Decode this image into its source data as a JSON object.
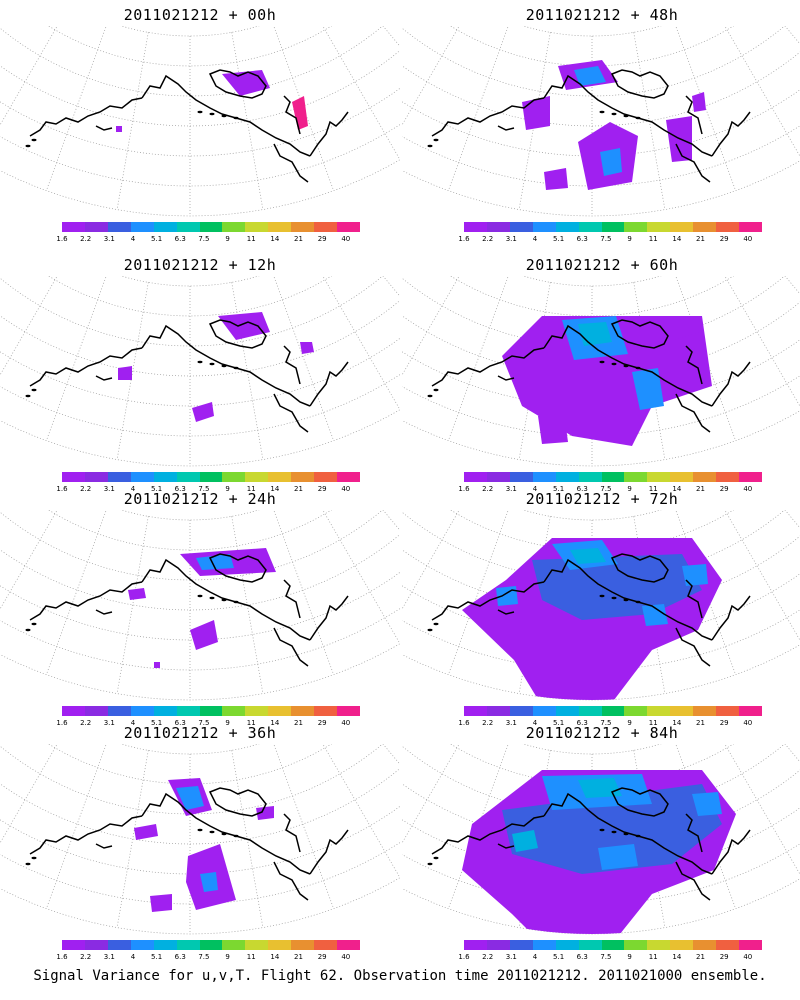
{
  "panels": [
    {
      "title": "2011021212 + 00h",
      "col": 0,
      "row": 0,
      "level": 0
    },
    {
      "title": "2011021212 + 48h",
      "col": 1,
      "row": 0,
      "level": 4
    },
    {
      "title": "2011021212 + 12h",
      "col": 0,
      "row": 1,
      "level": 1
    },
    {
      "title": "2011021212 + 60h",
      "col": 1,
      "row": 1,
      "level": 5
    },
    {
      "title": "2011021212 + 24h",
      "col": 0,
      "row": 2,
      "level": 2
    },
    {
      "title": "2011021212 + 72h",
      "col": 1,
      "row": 2,
      "level": 6
    },
    {
      "title": "2011021212 + 36h",
      "col": 0,
      "row": 3,
      "level": 3
    },
    {
      "title": "2011021212 + 84h",
      "col": 1,
      "row": 3,
      "level": 7
    }
  ],
  "colorbar": {
    "labels": [
      "1.6",
      "2.2",
      "3.1",
      "4",
      "5.1",
      "6.3",
      "7.5",
      "9",
      "11",
      "14",
      "21",
      "29",
      "40"
    ],
    "colors": [
      "#a020f0",
      "#8a2be2",
      "#3a5fe0",
      "#1e90ff",
      "#00b0e0",
      "#00c8b0",
      "#00c060",
      "#7cd830",
      "#c8d830",
      "#e8c030",
      "#e89030",
      "#f06040",
      "#f0208c"
    ]
  },
  "footer": "Signal Variance for u,v,T. Flight 62. Observation time 2011021212. 2011021000 ensemble."
}
